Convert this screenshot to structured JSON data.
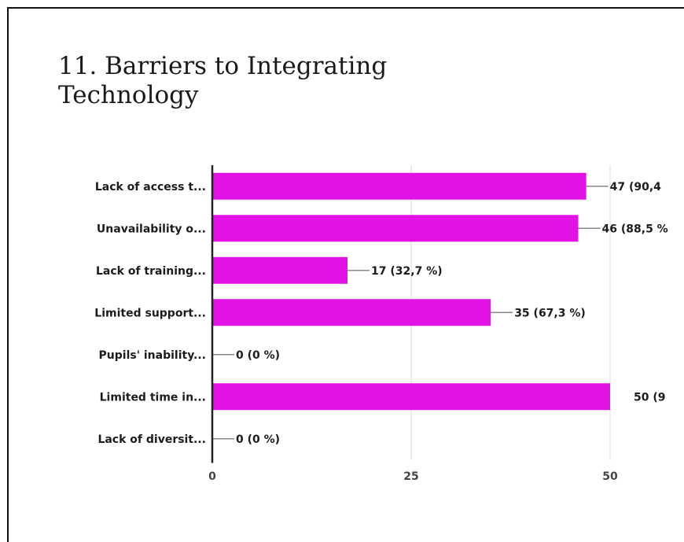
{
  "title_lines": [
    "11. Barriers to Integrating",
    "Technology"
  ],
  "chart_data": {
    "type": "bar",
    "orientation": "horizontal",
    "title": "11. Barriers to Integrating Technology",
    "categories": [
      "Lack of access t...",
      "Unavailability o...",
      "Lack of training...",
      "Limited support...",
      "Pupils' inability...",
      "Limited time in...",
      "Lack of diversit..."
    ],
    "values": [
      47,
      46,
      17,
      35,
      0,
      50,
      0
    ],
    "data_labels": [
      "47 (90,4",
      "46 (88,5 %",
      "17 (32,7 %)",
      "35 (67,3 %)",
      "0 (0 %)",
      "50 (9",
      "0 (0 %)"
    ],
    "xlim": [
      0,
      50
    ],
    "xticks": [
      0,
      25,
      50
    ],
    "xtick_labels": [
      "0",
      "25",
      "50"
    ],
    "grid": true,
    "bar_color": "#e112e3"
  }
}
